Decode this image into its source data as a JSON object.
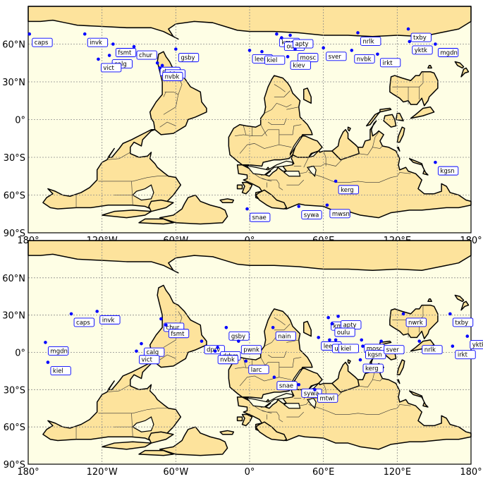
{
  "maps": [
    {
      "id": "top",
      "lon_ticks": [
        "180°",
        "120°W",
        "60°W",
        "0°",
        "60°E",
        "120°E",
        "180°"
      ],
      "lat_ticks": [
        "90°S",
        "60°S",
        "30°S",
        "0°",
        "30°N",
        "60°N"
      ],
      "lon_tick_values": [
        -180,
        -120,
        -60,
        0,
        60,
        120,
        180
      ],
      "lat_tick_values": [
        -90,
        -60,
        -30,
        0,
        30,
        60
      ],
      "stations": [
        {
          "label": "caps",
          "lon": -179,
          "lat": 68
        },
        {
          "label": "invk",
          "lon": -134,
          "lat": 68
        },
        {
          "label": "fsmt",
          "lon": -111,
          "lat": 60
        },
        {
          "label": "chur",
          "lon": -94,
          "lat": 58
        },
        {
          "label": "calg",
          "lon": -114,
          "lat": 51
        },
        {
          "label": "vict",
          "lon": -123,
          "lat": 48
        },
        {
          "label": "gsby",
          "lon": -60,
          "lat": 56
        },
        {
          "label": "dprv",
          "lon": -75,
          "lat": 45
        },
        {
          "label": "drhm",
          "lon": -71,
          "lat": 43
        },
        {
          "label": "nvbk",
          "lon": -73,
          "lat": 41
        },
        {
          "label": "leer",
          "lon": 0,
          "lat": 55
        },
        {
          "label": "kiel",
          "lon": 10,
          "lat": 54
        },
        {
          "label": "kmrl",
          "lon": 22,
          "lat": 68
        },
        {
          "label": "oulu",
          "lon": 26,
          "lat": 65
        },
        {
          "label": "apty",
          "lon": 33,
          "lat": 67
        },
        {
          "label": "mosc",
          "lon": 37,
          "lat": 56
        },
        {
          "label": "kiev",
          "lon": 31,
          "lat": 50
        },
        {
          "label": "sver",
          "lon": 60,
          "lat": 57
        },
        {
          "label": "nrlk",
          "lon": 88,
          "lat": 69
        },
        {
          "label": "nvbk",
          "lon": 83,
          "lat": 55
        },
        {
          "label": "irkt",
          "lon": 104,
          "lat": 52
        },
        {
          "label": "txby",
          "lon": 129,
          "lat": 72
        },
        {
          "label": "yktk",
          "lon": 130,
          "lat": 62
        },
        {
          "label": "mgdn",
          "lon": 151,
          "lat": 60
        },
        {
          "label": "kerg",
          "lon": 70,
          "lat": -49
        },
        {
          "label": "kgsn",
          "lon": 151,
          "lat": -34
        },
        {
          "label": "snae",
          "lon": -2,
          "lat": -71
        },
        {
          "label": "sywa",
          "lon": 40,
          "lat": -69
        },
        {
          "label": "mwsn",
          "lon": 63,
          "lat": -68
        }
      ]
    },
    {
      "id": "bottom",
      "lon_ticks": [
        "180°",
        "120°W",
        "60°W",
        "0°",
        "60°E",
        "120°E",
        "180°"
      ],
      "lat_ticks": [
        "90°S",
        "60°S",
        "30°S",
        "0°",
        "30°N",
        "60°N"
      ],
      "lon_tick_values": [
        -180,
        -120,
        -60,
        0,
        60,
        120,
        180
      ],
      "lat_tick_values": [
        -90,
        -60,
        -30,
        0,
        30,
        60
      ],
      "stations": [
        {
          "label": "caps",
          "lon": -145,
          "lat": 31
        },
        {
          "label": "invk",
          "lon": -124,
          "lat": 33
        },
        {
          "label": "chur",
          "lon": -72,
          "lat": 27
        },
        {
          "label": "fsmt",
          "lon": -68,
          "lat": 22
        },
        {
          "label": "gsby",
          "lon": -19,
          "lat": 20
        },
        {
          "label": "mgdn",
          "lon": -166,
          "lat": 8
        },
        {
          "label": "calg",
          "lon": -88,
          "lat": 7
        },
        {
          "label": "vict",
          "lon": -92,
          "lat": 1
        },
        {
          "label": "dprv",
          "lon": -39,
          "lat": 9
        },
        {
          "label": "drhm",
          "lon": -26,
          "lat": 4
        },
        {
          "label": "nvbk",
          "lon": -28,
          "lat": 1
        },
        {
          "label": "pwnk",
          "lon": -9,
          "lat": 9
        },
        {
          "label": "nain",
          "lon": 19,
          "lat": 20
        },
        {
          "label": "kmrl",
          "lon": 64,
          "lat": 28
        },
        {
          "label": "apty",
          "lon": 72,
          "lat": 29
        },
        {
          "label": "oulu",
          "lon": 67,
          "lat": 23
        },
        {
          "label": "leer",
          "lon": 56,
          "lat": 12
        },
        {
          "label": "utrt",
          "lon": 65,
          "lat": 10
        },
        {
          "label": "kiel",
          "lon": 70,
          "lat": 10
        },
        {
          "label": "mosc",
          "lon": 91,
          "lat": 10
        },
        {
          "label": "kgsn",
          "lon": 92,
          "lat": 5
        },
        {
          "label": "sver",
          "lon": 107,
          "lat": 9
        },
        {
          "label": "nwrk",
          "lon": 125,
          "lat": 31
        },
        {
          "label": "txby",
          "lon": 163,
          "lat": 31
        },
        {
          "label": "nrlk",
          "lon": 138,
          "lat": 9
        },
        {
          "label": "yktk",
          "lon": 177,
          "lat": 13
        },
        {
          "label": "irkt",
          "lon": 165,
          "lat": 5
        },
        {
          "label": "kerg",
          "lon": 90,
          "lat": -6
        },
        {
          "label": "larc",
          "lon": -3,
          "lat": -7
        },
        {
          "label": "snae",
          "lon": 20,
          "lat": -20
        },
        {
          "label": "sywa",
          "lon": 40,
          "lat": -26
        },
        {
          "label": "mtwl",
          "lon": 53,
          "lat": -30
        },
        {
          "label": "kiel",
          "lon": -164,
          "lat": -8
        }
      ]
    }
  ],
  "colors": {
    "ocean": "#fefee5",
    "land": "#fde39c",
    "coast": "#000000",
    "border": "#333333",
    "grid": "#8a8a8a",
    "station": "#0000ff",
    "label_border": "#0000ff",
    "label_bg": "#ffffff"
  }
}
